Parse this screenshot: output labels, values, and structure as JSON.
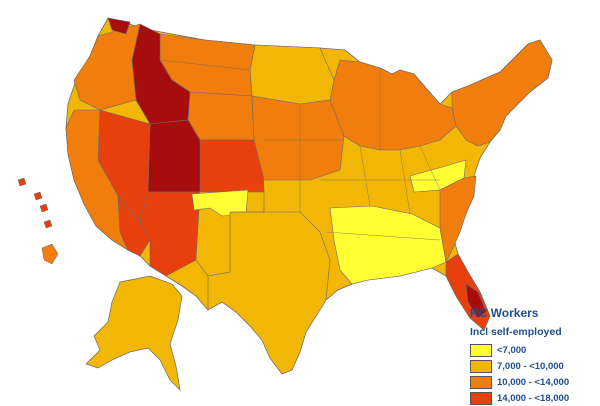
{
  "legend": {
    "title": "RC Workers",
    "subtitle": "Incl self-employed",
    "classes": [
      {
        "label": "<7,000",
        "color": "#ffff33"
      },
      {
        "label": "7,000 - <10,000",
        "color": "#f2b705"
      },
      {
        "label": "10,000 - <14,000",
        "color": "#f07d0c"
      },
      {
        "label": "14,000 - <18,000",
        "color": "#e8400c"
      }
    ],
    "extra_color": "#a80d0d"
  },
  "colors": {
    "border": "#6b6b6b",
    "background": "#ffffff"
  }
}
